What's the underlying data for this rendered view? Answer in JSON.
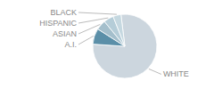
{
  "chart_data": {
    "type": "pie",
    "categories": [
      "WHITE",
      "A.I.",
      "ASIAN",
      "HISPANIC",
      "BLACK"
    ],
    "values": [
      78,
      8,
      5,
      5,
      4
    ],
    "colors": [
      "#ccd6de",
      "#5b8fa8",
      "#a4bfcc",
      "#b5cdd8",
      "#c5d8e0"
    ]
  }
}
